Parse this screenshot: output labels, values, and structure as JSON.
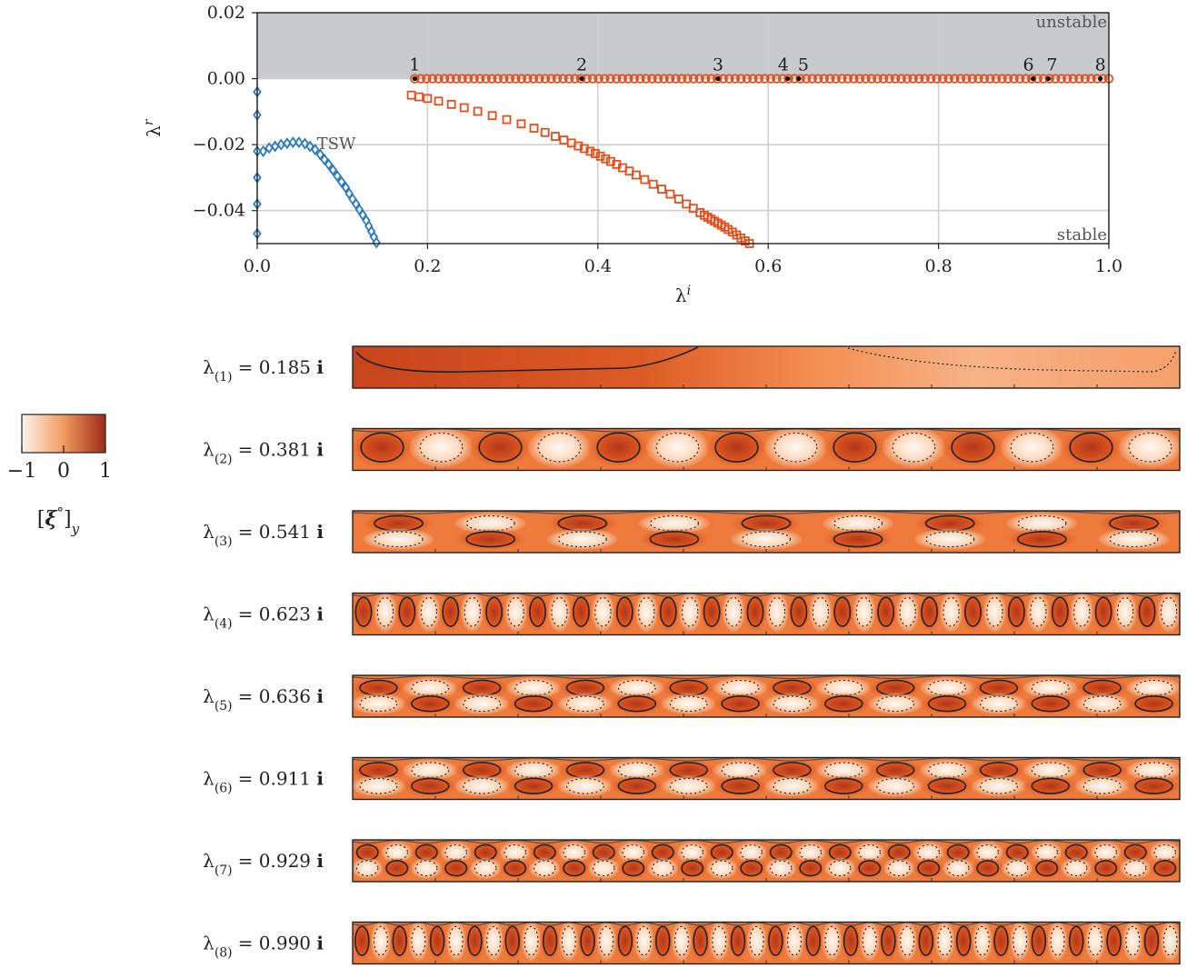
{
  "chart_data": [
    {
      "type": "scatter",
      "title": "",
      "xlabel": "λ^i",
      "ylabel": "λ^r",
      "xlim": [
        0.0,
        1.0
      ],
      "ylim": [
        -0.05,
        0.02
      ],
      "x_ticks": [
        "0.0",
        "0.2",
        "0.4",
        "0.6",
        "0.8",
        "1.0"
      ],
      "y_ticks": [
        "0.02",
        "0.00",
        "−0.02",
        "−0.04"
      ],
      "grid": true,
      "regions": {
        "unstable_label": "unstable",
        "stable_label": "stable",
        "unstable_color": "#c9cacd"
      },
      "annotations": {
        "tsw": "TSW"
      },
      "mode_labels": [
        "1",
        "2",
        "3",
        "4",
        "5",
        "6",
        "7",
        "8"
      ],
      "mode_x": [
        0.185,
        0.381,
        0.541,
        0.623,
        0.636,
        0.911,
        0.929,
        0.99
      ],
      "series": [
        {
          "marker": "diamond",
          "color": "#2b7bba",
          "points": [
            [
              0.0,
              -0.004
            ],
            [
              0.0,
              -0.011
            ],
            [
              0.0,
              -0.022
            ],
            [
              0.0,
              -0.03
            ],
            [
              0.0,
              -0.038
            ],
            [
              0.0,
              -0.047
            ],
            [
              0.007,
              -0.022
            ],
            [
              0.014,
              -0.021
            ],
            [
              0.021,
              -0.0205
            ],
            [
              0.028,
              -0.02
            ],
            [
              0.035,
              -0.0196
            ],
            [
              0.042,
              -0.0193
            ],
            [
              0.049,
              -0.0193
            ],
            [
              0.056,
              -0.0197
            ],
            [
              0.062,
              -0.0205
            ],
            [
              0.068,
              -0.0215
            ],
            [
              0.074,
              -0.023
            ],
            [
              0.079,
              -0.0245
            ],
            [
              0.084,
              -0.026
            ],
            [
              0.089,
              -0.0277
            ],
            [
              0.094,
              -0.0295
            ],
            [
              0.099,
              -0.0313
            ],
            [
              0.104,
              -0.033
            ],
            [
              0.108,
              -0.0348
            ],
            [
              0.112,
              -0.0365
            ],
            [
              0.116,
              -0.038
            ],
            [
              0.12,
              -0.0397
            ],
            [
              0.124,
              -0.0413
            ],
            [
              0.128,
              -0.043
            ],
            [
              0.131,
              -0.0447
            ],
            [
              0.134,
              -0.0463
            ],
            [
              0.137,
              -0.048
            ],
            [
              0.14,
              -0.0497
            ]
          ]
        },
        {
          "marker": "circle",
          "color": "#e0501d",
          "x_range": [
            0.185,
            1.0
          ],
          "y": 0.0,
          "count": 118
        },
        {
          "marker": "square",
          "color": "#e0501d",
          "points": [
            [
              0.181,
              -0.005
            ],
            [
              0.19,
              -0.0055
            ],
            [
              0.2,
              -0.006
            ],
            [
              0.213,
              -0.0068
            ],
            [
              0.228,
              -0.0078
            ],
            [
              0.243,
              -0.0088
            ],
            [
              0.259,
              -0.0099
            ],
            [
              0.276,
              -0.0112
            ],
            [
              0.293,
              -0.0124
            ],
            [
              0.31,
              -0.0137
            ],
            [
              0.325,
              -0.015
            ],
            [
              0.338,
              -0.0163
            ],
            [
              0.35,
              -0.0175
            ],
            [
              0.36,
              -0.0186
            ],
            [
              0.369,
              -0.0195
            ],
            [
              0.377,
              -0.0204
            ],
            [
              0.384,
              -0.0212
            ],
            [
              0.391,
              -0.022
            ],
            [
              0.397,
              -0.0227
            ],
            [
              0.403,
              -0.0235
            ],
            [
              0.409,
              -0.0243
            ],
            [
              0.415,
              -0.0251
            ],
            [
              0.422,
              -0.026
            ],
            [
              0.429,
              -0.027
            ],
            [
              0.437,
              -0.028
            ],
            [
              0.445,
              -0.0292
            ],
            [
              0.455,
              -0.0306
            ],
            [
              0.465,
              -0.032
            ],
            [
              0.475,
              -0.0335
            ],
            [
              0.485,
              -0.035
            ],
            [
              0.495,
              -0.0365
            ],
            [
              0.504,
              -0.038
            ],
            [
              0.512,
              -0.0393
            ],
            [
              0.52,
              -0.0406
            ],
            [
              0.525,
              -0.0414
            ],
            [
              0.529,
              -0.042
            ],
            [
              0.533,
              -0.0426
            ],
            [
              0.537,
              -0.0432
            ],
            [
              0.541,
              -0.0438
            ],
            [
              0.545,
              -0.0444
            ],
            [
              0.549,
              -0.045
            ],
            [
              0.553,
              -0.0457
            ],
            [
              0.558,
              -0.0465
            ],
            [
              0.563,
              -0.0474
            ],
            [
              0.568,
              -0.0483
            ],
            [
              0.573,
              -0.0492
            ],
            [
              0.578,
              -0.05
            ]
          ]
        }
      ]
    },
    {
      "type": "heatmap",
      "title": "",
      "colorbar": {
        "label": "[ξ°]_y",
        "ticks": [
          "−1",
          "0",
          "1"
        ],
        "range": [
          -1,
          1
        ],
        "colors": [
          "#fdf4ec",
          "#f29a5e",
          "#9c2b17"
        ]
      },
      "modes": [
        {
          "label": "λ(1) = 0.185 i",
          "wavelengths": 0.5,
          "rows": 1,
          "pattern": "base"
        },
        {
          "label": "λ(2) = 0.381 i",
          "wavelengths": 7,
          "rows": 1,
          "pattern": "cells"
        },
        {
          "label": "λ(3) = 0.541 i",
          "wavelengths": 4.5,
          "rows": 2,
          "pattern": "mixed"
        },
        {
          "label": "λ(4) = 0.623 i",
          "wavelengths": 19,
          "rows": 1,
          "pattern": "fingers"
        },
        {
          "label": "λ(5) = 0.636 i",
          "wavelengths": 8,
          "rows": 2,
          "pattern": "blobs"
        },
        {
          "label": "λ(6) = 0.911 i",
          "wavelengths": 8,
          "rows": 2,
          "pattern": "blobs"
        },
        {
          "label": "λ(7) = 0.929 i",
          "wavelengths": 14,
          "rows": 2,
          "pattern": "checker"
        },
        {
          "label": "λ(8) = 0.990 i",
          "wavelengths": 22,
          "rows": 1,
          "pattern": "fingers"
        }
      ]
    }
  ]
}
